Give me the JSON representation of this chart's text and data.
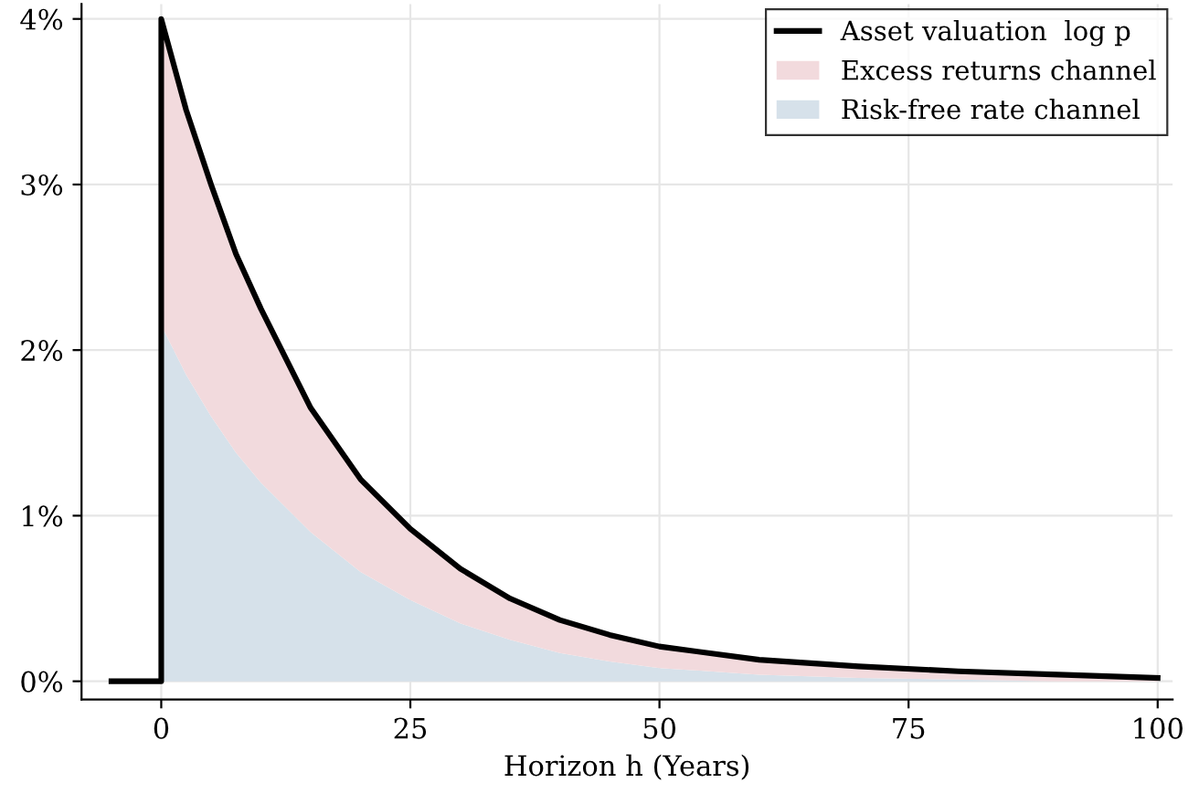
{
  "chart_data": {
    "type": "area",
    "xlabel": "Horizon h (Years)",
    "x": [
      0,
      2.5,
      5,
      7.5,
      10,
      15,
      20,
      25,
      30,
      35,
      40,
      45,
      50,
      60,
      70,
      80,
      90,
      100
    ],
    "stacked": true,
    "series": [
      {
        "name": "Risk-free rate channel",
        "color": "#d6e1ea",
        "values": [
          2.15,
          1.85,
          1.6,
          1.38,
          1.2,
          0.9,
          0.66,
          0.49,
          0.35,
          0.25,
          0.17,
          0.12,
          0.08,
          0.04,
          0.02,
          0.01,
          0.0,
          0.0
        ]
      },
      {
        "name": "Excess returns channel",
        "color": "#f2dadd",
        "values": [
          1.85,
          1.6,
          1.4,
          1.2,
          1.05,
          0.75,
          0.56,
          0.43,
          0.33,
          0.25,
          0.2,
          0.16,
          0.13,
          0.09,
          0.07,
          0.05,
          0.04,
          0.02
        ]
      },
      {
        "name": "Asset valuation  log p",
        "type": "line",
        "color": "#000000",
        "x": [
          -5,
          0,
          0,
          2.5,
          5,
          7.5,
          10,
          15,
          20,
          25,
          30,
          35,
          40,
          45,
          50,
          60,
          70,
          80,
          90,
          100
        ],
        "values": [
          0,
          0,
          4.0,
          3.45,
          3.0,
          2.58,
          2.25,
          1.65,
          1.22,
          0.92,
          0.68,
          0.5,
          0.37,
          0.28,
          0.21,
          0.13,
          0.09,
          0.06,
          0.04,
          0.02
        ]
      }
    ],
    "xlim": [
      -8,
      101.5
    ],
    "ylim": [
      -0.11,
      4.09
    ],
    "xticks": [
      0,
      25,
      50,
      75,
      100
    ],
    "yticks": [
      {
        "value": 0,
        "label": "0%"
      },
      {
        "value": 1,
        "label": "1%"
      },
      {
        "value": 2,
        "label": "2%"
      },
      {
        "value": 3,
        "label": "3%"
      },
      {
        "value": 4,
        "label": "4%"
      }
    ],
    "grid": true,
    "legend": "top right",
    "line_style": "solid",
    "marker": "none"
  }
}
